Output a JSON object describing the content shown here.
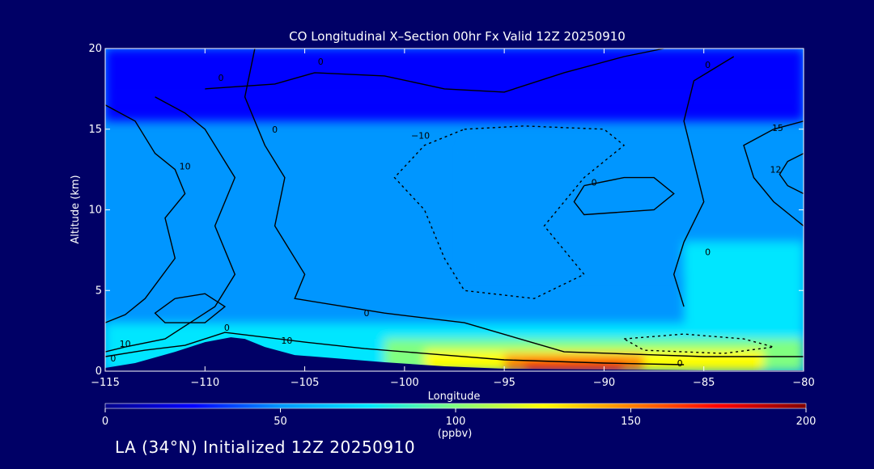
{
  "footer_text": "LA (34°N) Initialized 12Z 20250910",
  "chart_data": {
    "type": "heatmap",
    "title": "CO Longitudinal X–Section 00hr  Fx Valid 12Z 20250910",
    "xlabel": "Longitude",
    "ylabel": "Altitude (km)",
    "xlim": [
      -115,
      -80
    ],
    "ylim": [
      0,
      20
    ],
    "x_ticks": [
      -115,
      -110,
      -105,
      -100,
      -95,
      -90,
      -85,
      -80
    ],
    "x_tick_labels": [
      "−115",
      "−110",
      "−105",
      "−100",
      "−95",
      "−90",
      "−85",
      "−80"
    ],
    "y_ticks": [
      0,
      5,
      10,
      15,
      20
    ],
    "colorbar": {
      "min": 0,
      "max": 200,
      "ticks": [
        0,
        50,
        100,
        150,
        200
      ],
      "label": "(ppbv)",
      "colors": [
        "#00008b",
        "#0000ff",
        "#0096ff",
        "#00e6ff",
        "#80ff80",
        "#ffff00",
        "#ff8000",
        "#ff0000",
        "#800000"
      ]
    },
    "units": "ppbv",
    "field_summary": {
      "background_low_lon": [
        -115,
        -80
      ],
      "surface_max_lon": -92,
      "surface_max_value": 180,
      "terrain_peak_lon": -108.5,
      "terrain_peak_alt_km": 2.1
    },
    "contour_labels": [
      {
        "text": "0",
        "lon": -104.2,
        "alt": 19.2
      },
      {
        "text": "0",
        "lon": -109.2,
        "alt": 18.2
      },
      {
        "text": "0",
        "lon": -84.8,
        "alt": 19.0
      },
      {
        "text": "0",
        "lon": -106.5,
        "alt": 15.0
      },
      {
        "text": "−10",
        "lon": -99.2,
        "alt": 14.6
      },
      {
        "text": "10",
        "lon": -111.0,
        "alt": 12.7
      },
      {
        "text": "0",
        "lon": -90.5,
        "alt": 11.7
      },
      {
        "text": "15",
        "lon": -81.3,
        "alt": 15.1
      },
      {
        "text": "12",
        "lon": -81.4,
        "alt": 12.5
      },
      {
        "text": "0",
        "lon": -84.8,
        "alt": 7.4
      },
      {
        "text": "0",
        "lon": -101.9,
        "alt": 3.6
      },
      {
        "text": "0",
        "lon": -108.9,
        "alt": 2.7
      },
      {
        "text": "10",
        "lon": -114.0,
        "alt": 1.7
      },
      {
        "text": "10",
        "lon": -105.9,
        "alt": 1.9
      },
      {
        "text": "0",
        "lon": -114.6,
        "alt": 0.8
      },
      {
        "text": "0",
        "lon": -86.2,
        "alt": 0.5
      }
    ]
  }
}
